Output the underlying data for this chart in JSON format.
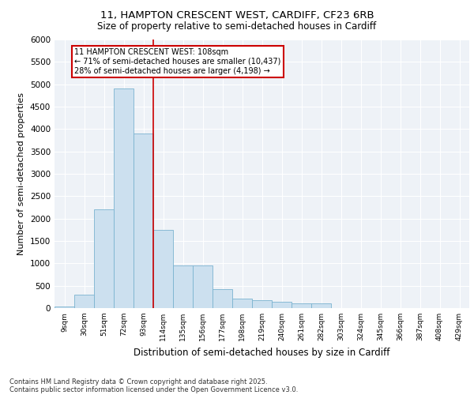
{
  "title_line1": "11, HAMPTON CRESCENT WEST, CARDIFF, CF23 6RB",
  "title_line2": "Size of property relative to semi-detached houses in Cardiff",
  "xlabel": "Distribution of semi-detached houses by size in Cardiff",
  "ylabel": "Number of semi-detached properties",
  "bin_labels": [
    "9sqm",
    "30sqm",
    "51sqm",
    "72sqm",
    "93sqm",
    "114sqm",
    "135sqm",
    "156sqm",
    "177sqm",
    "198sqm",
    "219sqm",
    "240sqm",
    "261sqm",
    "282sqm",
    "303sqm",
    "324sqm",
    "345sqm",
    "366sqm",
    "387sqm",
    "408sqm",
    "429sqm"
  ],
  "bar_values": [
    30,
    300,
    2200,
    4900,
    3900,
    1750,
    950,
    950,
    430,
    220,
    180,
    150,
    100,
    100,
    0,
    0,
    0,
    0,
    0,
    0,
    0
  ],
  "bar_color": "#cce0ef",
  "bar_edge_color": "#7ab3d0",
  "vline_color": "#cc0000",
  "vline_bin": 4,
  "annotation_text": "11 HAMPTON CRESCENT WEST: 108sqm\n← 71% of semi-detached houses are smaller (10,437)\n28% of semi-detached houses are larger (4,198) →",
  "annotation_box_color": "white",
  "annotation_box_edge": "#cc0000",
  "ylim": [
    0,
    6000
  ],
  "yticks": [
    0,
    500,
    1000,
    1500,
    2000,
    2500,
    3000,
    3500,
    4000,
    4500,
    5000,
    5500,
    6000
  ],
  "bg_color": "#eef2f7",
  "grid_color": "#ffffff",
  "footer_line1": "Contains HM Land Registry data © Crown copyright and database right 2025.",
  "footer_line2": "Contains public sector information licensed under the Open Government Licence v3.0."
}
